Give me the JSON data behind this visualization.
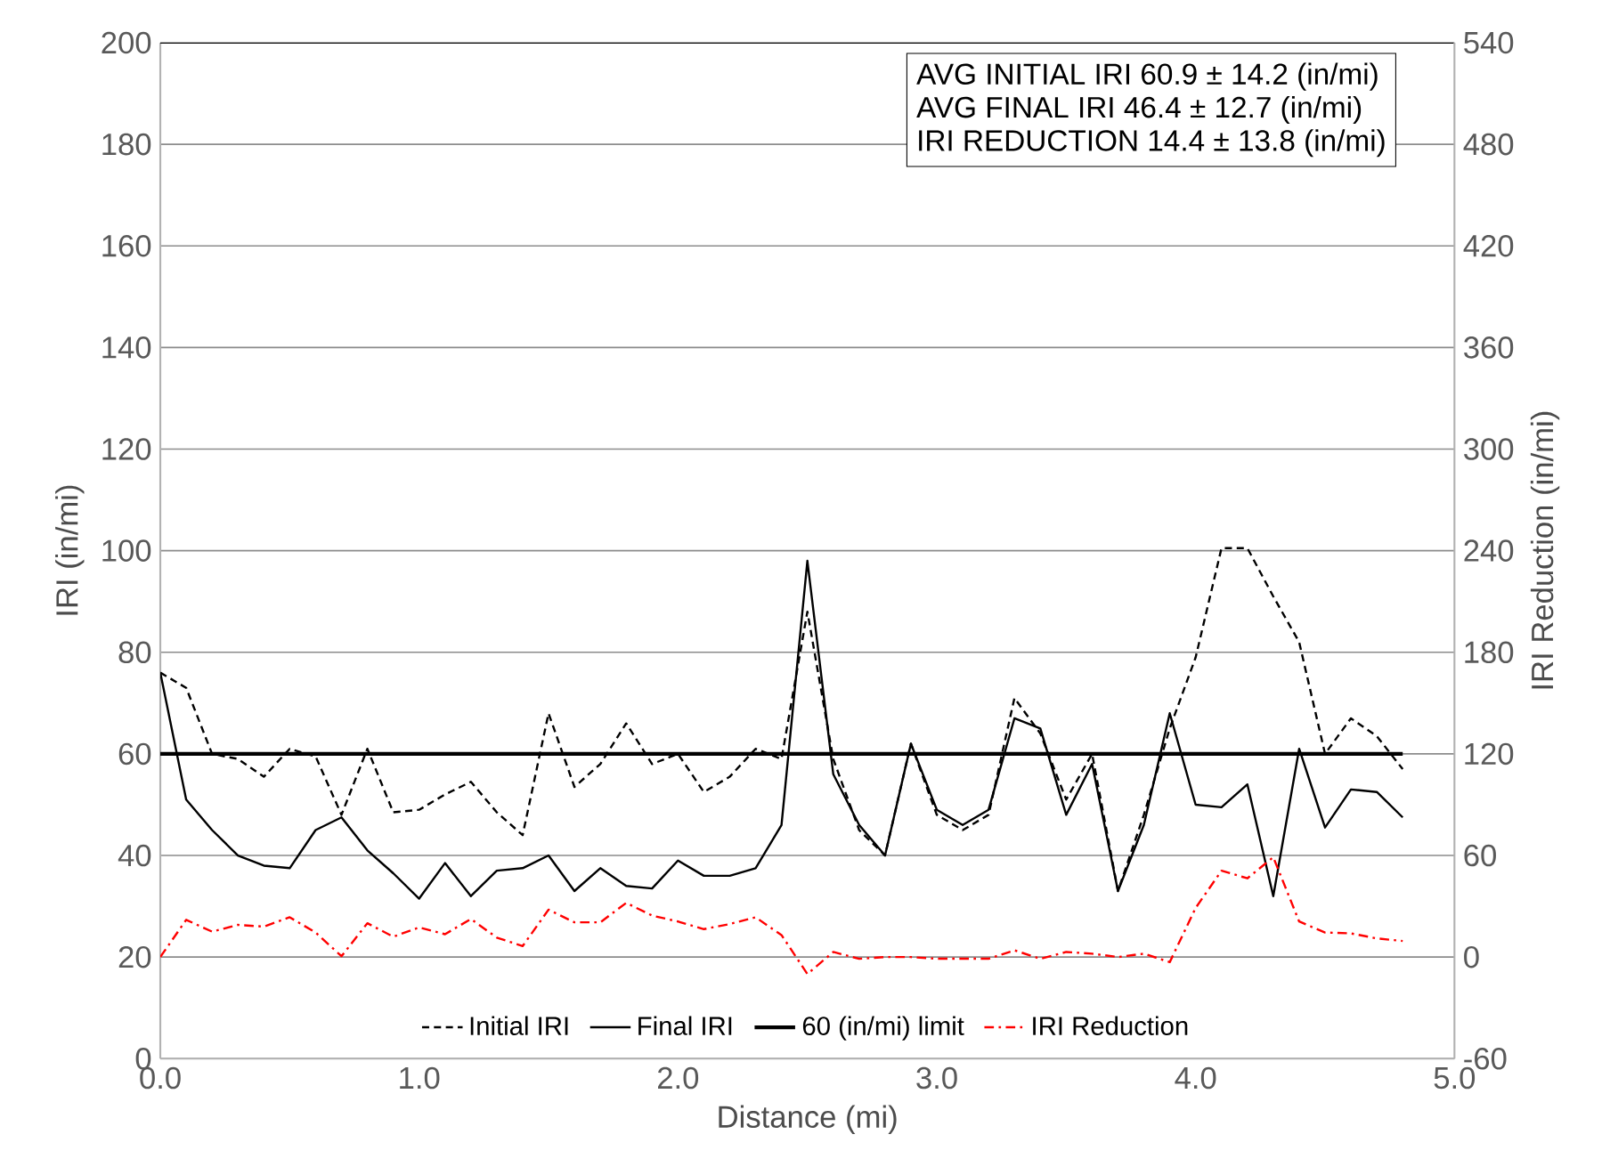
{
  "chart_data": {
    "type": "line",
    "xlabel": "Distance (mi)",
    "ylabel": "IRI (in/mi)",
    "y2label": "IRI Reduction (in/mi)",
    "x": [
      0.0,
      0.1,
      0.2,
      0.3,
      0.4,
      0.5,
      0.6,
      0.7,
      0.8,
      0.9,
      1.0,
      1.1,
      1.2,
      1.3,
      1.4,
      1.5,
      1.6,
      1.7,
      1.8,
      1.9,
      2.0,
      2.1,
      2.2,
      2.3,
      2.4,
      2.5,
      2.6,
      2.7,
      2.8,
      2.9,
      3.0,
      3.1,
      3.2,
      3.3,
      3.4,
      3.5,
      3.6,
      3.7,
      3.8,
      3.9,
      4.0,
      4.1,
      4.2,
      4.3,
      4.4,
      4.5,
      4.6,
      4.7,
      4.8
    ],
    "series": [
      {
        "name": "Initial IRI",
        "color": "#000000",
        "line_style": "dashed",
        "values": [
          76,
          73,
          60,
          59,
          55.5,
          61,
          59.5,
          48,
          61,
          48.5,
          49,
          52,
          54.5,
          48.5,
          44,
          68,
          53.5,
          58,
          66,
          58,
          60,
          52.5,
          55.5,
          61,
          59,
          88,
          59,
          45,
          40,
          62,
          48,
          45,
          48,
          71,
          64,
          51,
          60,
          33,
          48,
          65,
          79,
          100.5,
          100.5,
          91,
          82,
          60,
          67,
          63.5,
          57
        ]
      },
      {
        "name": "Final IRI",
        "color": "#000000",
        "line_style": "solid",
        "values": [
          76,
          51,
          45,
          40,
          38,
          37.5,
          45,
          47.5,
          41,
          36.5,
          31.5,
          38.5,
          32,
          37,
          37.5,
          40,
          33,
          37.5,
          34,
          33.5,
          39,
          36,
          36,
          37.5,
          46,
          98,
          56,
          46,
          40,
          62,
          49,
          46,
          49,
          67,
          65,
          48,
          58,
          33,
          46,
          68,
          50,
          49.5,
          54,
          32,
          61,
          45.5,
          53,
          52.5,
          47.5
        ]
      },
      {
        "name": "IRI Reduction",
        "color": "#ff0000",
        "line_style": "dashdot",
        "axis": "y2",
        "values": [
          0,
          22,
          15,
          19,
          18,
          23.5,
          14.5,
          0.5,
          20,
          12,
          17.5,
          13.5,
          22.5,
          11.5,
          6.5,
          28,
          20.5,
          20.5,
          32,
          24.5,
          21,
          16.5,
          19.5,
          23.5,
          13,
          -10,
          3,
          -1,
          0,
          0,
          -1,
          -1,
          -1,
          4,
          -1,
          3,
          2,
          0,
          2,
          -3,
          29,
          51,
          46.5,
          59,
          21,
          14.5,
          14,
          11,
          9.5
        ]
      }
    ],
    "ref_lines": [
      {
        "axis": "y",
        "value": 60,
        "label": "60 (in/mi) limit",
        "color": "#000000"
      }
    ],
    "annotations": [
      "AVG INITIAL IRI   60.9  ±  14.2  (in/mi)",
      "AVG FINAL  IRI   46.4  ±  12.7  (in/mi)",
      "IRI REDUCTION  14.4  ±  13.8  (in/mi)"
    ],
    "xlim": [
      0,
      5
    ],
    "ylim": [
      0,
      200
    ],
    "y2lim": [
      -60,
      540
    ],
    "xticks": [
      {
        "value": 0,
        "label": "0.0"
      },
      {
        "value": 1,
        "label": "1.0"
      },
      {
        "value": 2,
        "label": "2.0"
      },
      {
        "value": 3,
        "label": "3.0"
      },
      {
        "value": 4,
        "label": "4.0"
      },
      {
        "value": 5,
        "label": "5.0"
      }
    ],
    "yticks": [
      0,
      20,
      40,
      60,
      80,
      100,
      120,
      140,
      160,
      180,
      200
    ],
    "y2ticks": [
      -60,
      0,
      60,
      120,
      180,
      240,
      300,
      360,
      420,
      480,
      540
    ],
    "grid": "y",
    "legend": "bottom",
    "marker": "none"
  }
}
